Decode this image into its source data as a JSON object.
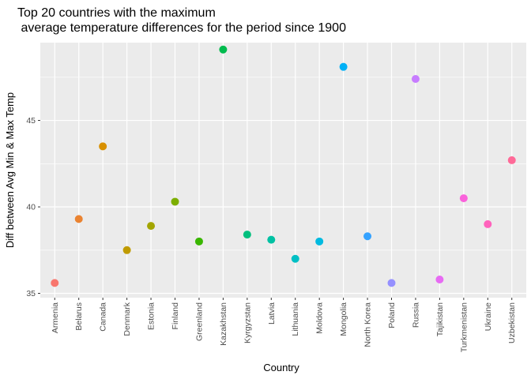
{
  "chart_data": {
    "type": "scatter",
    "title_lines": [
      "Top 20 countries with the maximum",
      " average temperature differences for the period since 1900"
    ],
    "xlabel": "Country",
    "ylabel": "Diff between Avg Min & Max Temp",
    "ylim": [
      34.75,
      49.5
    ],
    "yticks": [
      35,
      40,
      45
    ],
    "grid": true,
    "legend": "none",
    "categories": [
      "Armenia",
      "Belarus",
      "Canada",
      "Denmark",
      "Estonia",
      "Finland",
      "Greenland",
      "Kazakhstan",
      "Kyrgyzstan",
      "Latvia",
      "Lithuania",
      "Moldova",
      "Mongolia",
      "North Korea",
      "Poland",
      "Russia",
      "Tajikistan",
      "Turkmenistan",
      "Ukraine",
      "Uzbekistan"
    ],
    "values": [
      35.6,
      39.3,
      43.5,
      37.5,
      38.9,
      40.3,
      38.0,
      49.1,
      38.4,
      38.1,
      37.0,
      38.0,
      48.1,
      38.3,
      35.6,
      47.4,
      35.8,
      40.5,
      39.0,
      42.7
    ],
    "colors": [
      "#F8766D",
      "#EA8331",
      "#D89000",
      "#C09B00",
      "#A3A500",
      "#7CAE00",
      "#39B600",
      "#00BB4E",
      "#00BF7D",
      "#00C1A3",
      "#00BFC4",
      "#00BAE0",
      "#00B0F6",
      "#35A2FF",
      "#9590FF",
      "#C77CFF",
      "#E76BF3",
      "#FA62DB",
      "#FF62BC",
      "#FF6A98"
    ]
  }
}
